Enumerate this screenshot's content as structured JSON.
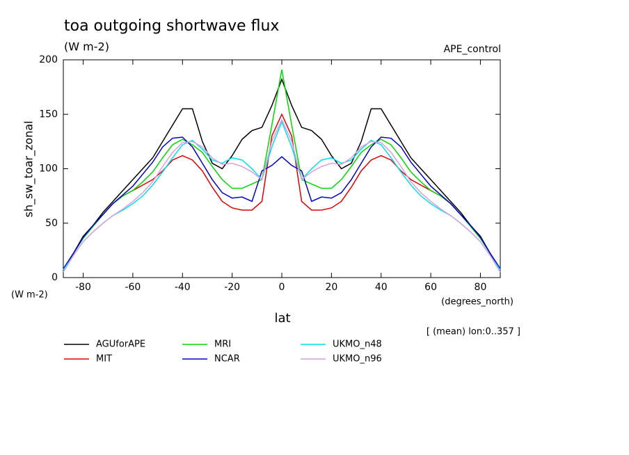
{
  "chart_data": {
    "type": "line",
    "title": "toa outgoing shortwave flux",
    "subtitle": "(W m-2)",
    "annotation_right": "APE_control",
    "y_label": "sh_sw_toar_zonal",
    "y_units": "(W m-2)",
    "x_label": "lat",
    "x_units": "(degrees_north)",
    "note": "[ (mean) lon:0..357 ]",
    "x": [
      -88,
      -84,
      -80,
      -76,
      -72,
      -68,
      -64,
      -60,
      -56,
      -52,
      -48,
      -44,
      -40,
      -36,
      -32,
      -28,
      -24,
      -20,
      -16,
      -12,
      -8,
      -4,
      0,
      4,
      8,
      12,
      16,
      20,
      24,
      28,
      32,
      36,
      40,
      44,
      48,
      52,
      56,
      60,
      64,
      68,
      72,
      76,
      80,
      84,
      88
    ],
    "xlim": [
      -88,
      88
    ],
    "xticks": [
      -80,
      -60,
      -40,
      -20,
      0,
      20,
      40,
      60,
      80
    ],
    "ylim": [
      0,
      200
    ],
    "yticks": [
      0,
      50,
      100,
      150,
      200
    ],
    "series": [
      {
        "name": "AGUforAPE",
        "color": "#000000",
        "values": [
          8,
          22,
          38,
          48,
          60,
          70,
          80,
          90,
          100,
          110,
          125,
          140,
          155,
          155,
          125,
          105,
          100,
          112,
          127,
          135,
          138,
          158,
          182,
          158,
          138,
          135,
          127,
          112,
          100,
          105,
          125,
          155,
          155,
          140,
          125,
          110,
          100,
          90,
          80,
          70,
          60,
          48,
          38,
          22,
          8
        ]
      },
      {
        "name": "MIT",
        "color": "#e00000",
        "values": [
          8,
          22,
          37,
          48,
          58,
          68,
          75,
          80,
          85,
          90,
          98,
          108,
          112,
          108,
          98,
          83,
          70,
          64,
          62,
          62,
          70,
          130,
          150,
          130,
          70,
          62,
          62,
          64,
          70,
          83,
          98,
          108,
          112,
          108,
          98,
          90,
          85,
          80,
          75,
          68,
          58,
          48,
          37,
          22,
          8
        ]
      },
      {
        "name": "MRI",
        "color": "#00d800",
        "values": [
          8,
          22,
          36,
          47,
          58,
          68,
          75,
          80,
          88,
          97,
          110,
          122,
          127,
          122,
          115,
          102,
          90,
          82,
          82,
          86,
          90,
          140,
          191,
          140,
          90,
          86,
          82,
          82,
          90,
          102,
          115,
          122,
          127,
          122,
          110,
          97,
          88,
          80,
          75,
          68,
          58,
          47,
          36,
          22,
          8
        ]
      },
      {
        "name": "NCAR",
        "color": "#0000c8",
        "values": [
          8,
          22,
          37,
          48,
          58,
          68,
          76,
          84,
          95,
          106,
          120,
          128,
          129,
          120,
          105,
          90,
          78,
          73,
          74,
          70,
          98,
          103,
          111,
          103,
          98,
          70,
          74,
          73,
          78,
          90,
          105,
          120,
          129,
          128,
          120,
          106,
          95,
          84,
          76,
          68,
          58,
          48,
          37,
          22,
          8
        ]
      },
      {
        "name": "UKMO_n48",
        "color": "#00e0ee",
        "values": [
          7,
          20,
          33,
          42,
          50,
          57,
          62,
          68,
          75,
          85,
          97,
          110,
          122,
          126,
          118,
          108,
          105,
          110,
          108,
          100,
          90,
          120,
          143,
          120,
          90,
          100,
          108,
          110,
          105,
          108,
          118,
          126,
          122,
          110,
          97,
          85,
          75,
          68,
          62,
          57,
          50,
          42,
          33,
          20,
          7
        ]
      },
      {
        "name": "UKMO_n96",
        "color": "#dca0dc",
        "values": [
          5,
          20,
          33,
          42,
          50,
          57,
          63,
          70,
          78,
          88,
          102,
          115,
          124,
          125,
          120,
          110,
          104,
          105,
          102,
          97,
          90,
          125,
          145,
          125,
          90,
          97,
          102,
          105,
          104,
          110,
          120,
          125,
          124,
          115,
          102,
          88,
          78,
          70,
          63,
          57,
          50,
          42,
          33,
          20,
          5
        ]
      }
    ]
  }
}
